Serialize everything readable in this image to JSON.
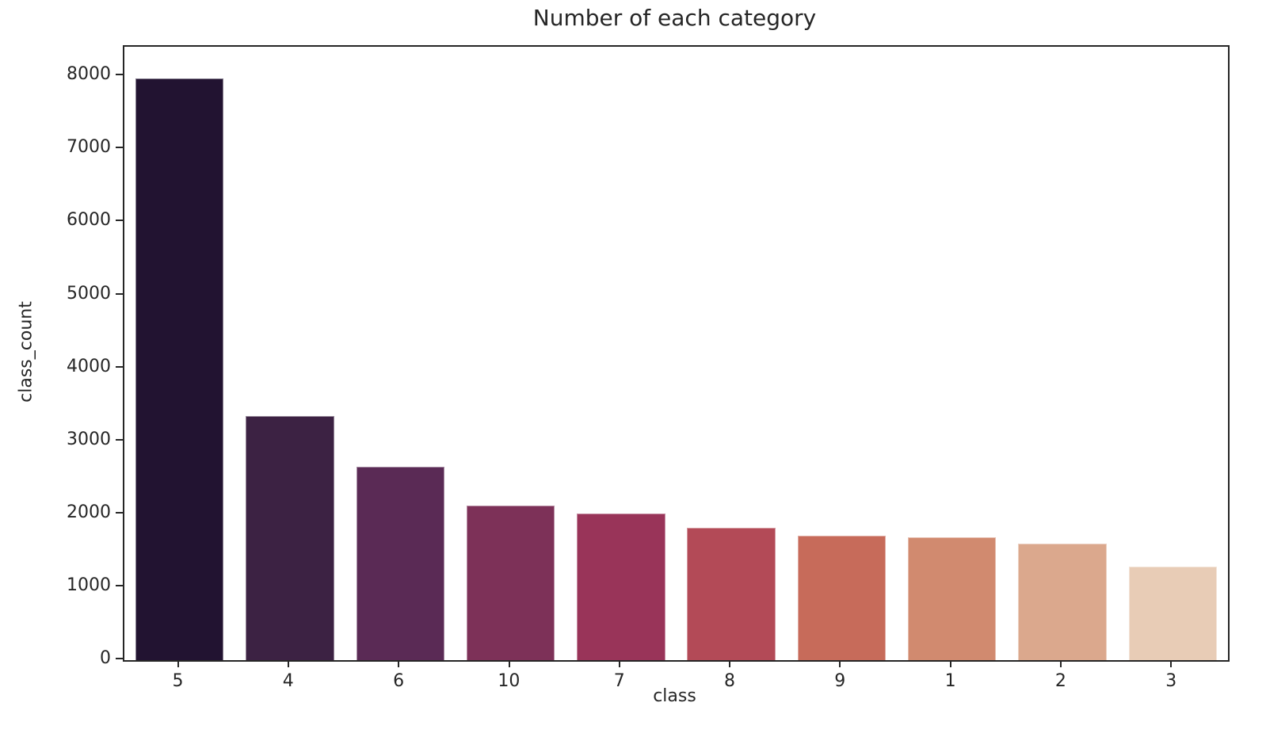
{
  "chart_data": {
    "type": "bar",
    "title": "Number of each category",
    "xlabel": "class",
    "ylabel": "class_count",
    "categories": [
      "5",
      "4",
      "6",
      "10",
      "7",
      "8",
      "9",
      "1",
      "2",
      "3"
    ],
    "values": [
      7970,
      3340,
      2650,
      2120,
      2010,
      1810,
      1700,
      1680,
      1595,
      1280
    ],
    "bar_colors": [
      "#221331",
      "#3c2243",
      "#5a2a55",
      "#7d3158",
      "#993459",
      "#b34a57",
      "#c76b5a",
      "#d18a6f",
      "#dba88d",
      "#e8ccb6"
    ],
    "yticks": [
      0,
      1000,
      2000,
      3000,
      4000,
      5000,
      6000,
      7000,
      8000
    ],
    "ylim": [
      0,
      8404
    ],
    "grid": false,
    "legend_position": "none",
    "spine_color": "#262626",
    "text_color": "#262626",
    "background_color": "#ffffff"
  }
}
